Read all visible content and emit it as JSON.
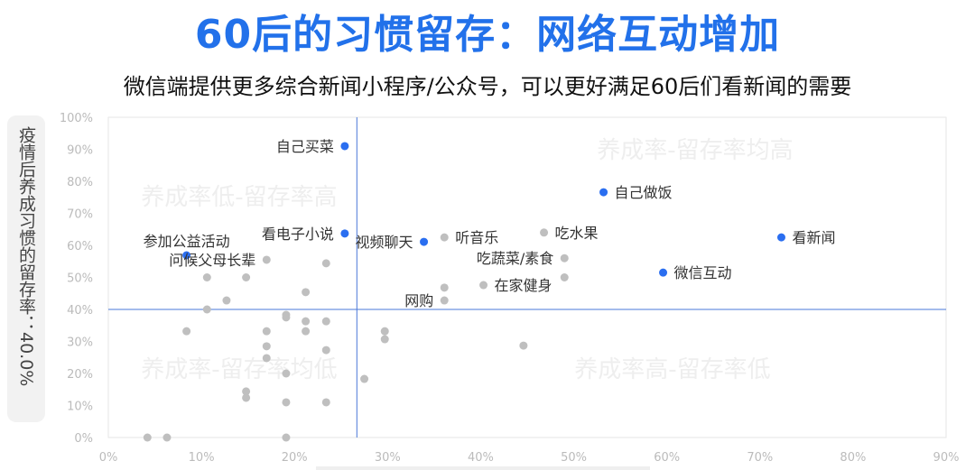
{
  "title": "60后的习惯留存：网络互动增加",
  "subtitle": "微信端提供更多综合新闻小程序/公众号，可以更好满足60后们看新闻的需要",
  "colors": {
    "highlight": "#2a6ef0",
    "normal": "#bfbfbf",
    "reference_line": "#4a78d8",
    "title": "#2271ea"
  },
  "chart_data": {
    "type": "scatter",
    "title": "60后的习惯留存：网络互动增加",
    "ylabel": "疫情后养成习惯的留存率：40.0%",
    "xlabel": "",
    "xlim": [
      0,
      90
    ],
    "ylim": [
      0,
      100
    ],
    "x_ticks": [
      "0%",
      "10%",
      "20%",
      "30%",
      "40%",
      "50%",
      "60%",
      "70%",
      "80%",
      "90%"
    ],
    "y_ticks": [
      "0%",
      "10%",
      "20%",
      "30%",
      "40%",
      "50%",
      "60%",
      "70%",
      "80%",
      "90%",
      "100%"
    ],
    "grid": false,
    "reference_lines": {
      "x": 26.7,
      "y": 40
    },
    "quadrant_labels": [
      "养成率低-留存率高",
      "养成率-留存率均高",
      "养成率-留存率均低",
      "养成率高-留存率低"
    ],
    "points": [
      {
        "x": 25.4,
        "y": 91,
        "label": "自己买菜",
        "highlight": true,
        "label_side": "left"
      },
      {
        "x": 25.4,
        "y": 63.7,
        "label": "看电子小说",
        "highlight": true,
        "label_side": "left"
      },
      {
        "x": 8.4,
        "y": 56.9,
        "label": "参加公益活动",
        "highlight": true,
        "label_side": "left"
      },
      {
        "x": 33.9,
        "y": 61.1,
        "label": "视频聊天",
        "highlight": true,
        "label_side": "left"
      },
      {
        "x": 53.2,
        "y": 76.6,
        "label": "自己做饭",
        "highlight": true,
        "label_side": "right"
      },
      {
        "x": 72.3,
        "y": 62.5,
        "label": "看新闻",
        "highlight": true,
        "label_side": "right"
      },
      {
        "x": 59.6,
        "y": 51.5,
        "label": "微信互动",
        "highlight": true,
        "label_side": "right"
      },
      {
        "x": 36.1,
        "y": 62.5,
        "label": "听音乐",
        "highlight": false,
        "label_side": "right"
      },
      {
        "x": 46.8,
        "y": 64,
        "label": "吃水果",
        "highlight": false,
        "label_side": "right"
      },
      {
        "x": 49,
        "y": 56,
        "label": "吃蔬菜/素食",
        "highlight": false,
        "label_side": "left"
      },
      {
        "x": 40.3,
        "y": 47.6,
        "label": "在家健身",
        "highlight": false,
        "label_side": "right"
      },
      {
        "x": 36.1,
        "y": 42.8,
        "label": "网购",
        "highlight": false,
        "label_side": "left"
      },
      {
        "x": 17,
        "y": 55.5,
        "label": "问候父母长辈",
        "highlight": false,
        "label_side": "left"
      },
      {
        "x": 49,
        "y": 50
      },
      {
        "x": 36.1,
        "y": 46.8
      },
      {
        "x": 44.6,
        "y": 28.7
      },
      {
        "x": 29.7,
        "y": 33.2
      },
      {
        "x": 29.7,
        "y": 30.7
      },
      {
        "x": 27.5,
        "y": 18.3
      },
      {
        "x": 23.4,
        "y": 54.4
      },
      {
        "x": 10.6,
        "y": 50
      },
      {
        "x": 14.8,
        "y": 50
      },
      {
        "x": 12.7,
        "y": 42.8
      },
      {
        "x": 10.6,
        "y": 40
      },
      {
        "x": 21.2,
        "y": 45.4
      },
      {
        "x": 8.4,
        "y": 33.2
      },
      {
        "x": 19.1,
        "y": 38.3
      },
      {
        "x": 19.1,
        "y": 37.5
      },
      {
        "x": 17,
        "y": 33.2
      },
      {
        "x": 21.2,
        "y": 36.3
      },
      {
        "x": 21.2,
        "y": 33.2
      },
      {
        "x": 23.4,
        "y": 36.3
      },
      {
        "x": 17,
        "y": 28.5
      },
      {
        "x": 23.4,
        "y": 27.3
      },
      {
        "x": 17,
        "y": 24.8
      },
      {
        "x": 19.1,
        "y": 20
      },
      {
        "x": 14.8,
        "y": 14.4
      },
      {
        "x": 14.8,
        "y": 12.4
      },
      {
        "x": 19.1,
        "y": 11
      },
      {
        "x": 23.4,
        "y": 11
      },
      {
        "x": 4.2,
        "y": 0
      },
      {
        "x": 6.3,
        "y": 0
      },
      {
        "x": 19.1,
        "y": 0
      }
    ]
  }
}
